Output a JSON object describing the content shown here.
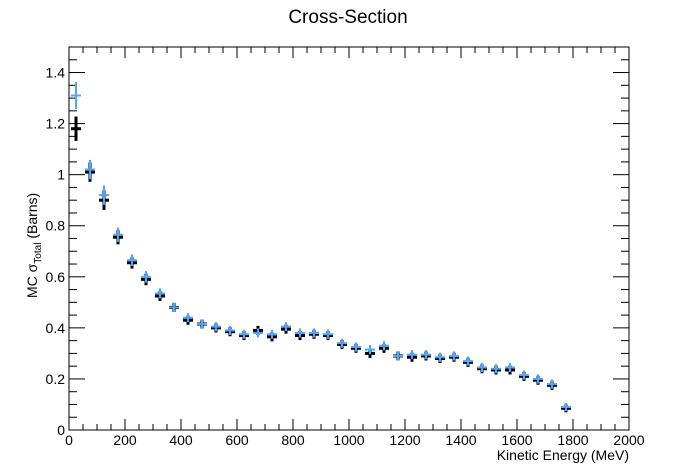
{
  "chart_data": {
    "type": "scatter",
    "title": "Cross-Section",
    "xlabel": "Kinetic Energy (MeV)",
    "ylabel": {
      "prefix": "MC ",
      "symbol": "σ",
      "subscript": "Total",
      "suffix": " (Barns)"
    },
    "xlim": [
      0,
      2000
    ],
    "ylim": [
      0,
      1.5
    ],
    "xticks": [
      0,
      200,
      400,
      600,
      800,
      1000,
      1200,
      1400,
      1600,
      1800,
      2000
    ],
    "yticks": [
      0,
      0.2,
      0.4,
      0.6,
      0.8,
      1,
      1.2,
      1.4
    ],
    "grid": false,
    "bin_width": 50,
    "series": [
      {
        "color": "#000000",
        "x": [
          25,
          75,
          125,
          175,
          225,
          275,
          325,
          375,
          425,
          475,
          525,
          575,
          625,
          675,
          725,
          775,
          825,
          875,
          925,
          975,
          1025,
          1075,
          1125,
          1175,
          1225,
          1275,
          1325,
          1375,
          1425,
          1475,
          1525,
          1575,
          1625,
          1675,
          1725,
          1775
        ],
        "y": [
          1.18,
          1.01,
          0.9,
          0.755,
          0.655,
          0.59,
          0.525,
          0.48,
          0.43,
          0.415,
          0.4,
          0.385,
          0.37,
          0.39,
          0.365,
          0.395,
          0.37,
          0.375,
          0.37,
          0.335,
          0.32,
          0.3,
          0.32,
          0.29,
          0.285,
          0.29,
          0.28,
          0.285,
          0.265,
          0.24,
          0.235,
          0.235,
          0.21,
          0.195,
          0.175,
          0.085
        ],
        "yerr": [
          0.04,
          0.03,
          0.03,
          0.02,
          0.015,
          0.015,
          0.012,
          0.01,
          0.01,
          0.01,
          0.01,
          0.01,
          0.01,
          0.01,
          0.01,
          0.01,
          0.01,
          0.01,
          0.01,
          0.01,
          0.01,
          0.01,
          0.01,
          0.01,
          0.01,
          0.01,
          0.01,
          0.01,
          0.01,
          0.01,
          0.01,
          0.01,
          0.01,
          0.01,
          0.01,
          0.008
        ]
      },
      {
        "color": "#4da6ff",
        "x": [
          25,
          75,
          125,
          175,
          225,
          275,
          325,
          375,
          425,
          475,
          525,
          575,
          625,
          675,
          725,
          775,
          825,
          875,
          925,
          975,
          1025,
          1075,
          1125,
          1175,
          1225,
          1275,
          1325,
          1375,
          1425,
          1475,
          1525,
          1575,
          1625,
          1675,
          1725,
          1775
        ],
        "y": [
          1.31,
          1.02,
          0.92,
          0.765,
          0.665,
          0.6,
          0.535,
          0.48,
          0.44,
          0.415,
          0.405,
          0.39,
          0.375,
          0.38,
          0.375,
          0.405,
          0.38,
          0.38,
          0.375,
          0.34,
          0.325,
          0.315,
          0.33,
          0.29,
          0.295,
          0.295,
          0.285,
          0.29,
          0.27,
          0.245,
          0.24,
          0.245,
          0.215,
          0.2,
          0.18,
          0.09
        ],
        "yerr": [
          0.045,
          0.03,
          0.03,
          0.02,
          0.015,
          0.015,
          0.012,
          0.01,
          0.01,
          0.01,
          0.01,
          0.01,
          0.01,
          0.01,
          0.01,
          0.01,
          0.01,
          0.01,
          0.01,
          0.01,
          0.01,
          0.01,
          0.01,
          0.01,
          0.01,
          0.01,
          0.01,
          0.01,
          0.01,
          0.01,
          0.01,
          0.01,
          0.01,
          0.01,
          0.01,
          0.008
        ]
      }
    ]
  }
}
